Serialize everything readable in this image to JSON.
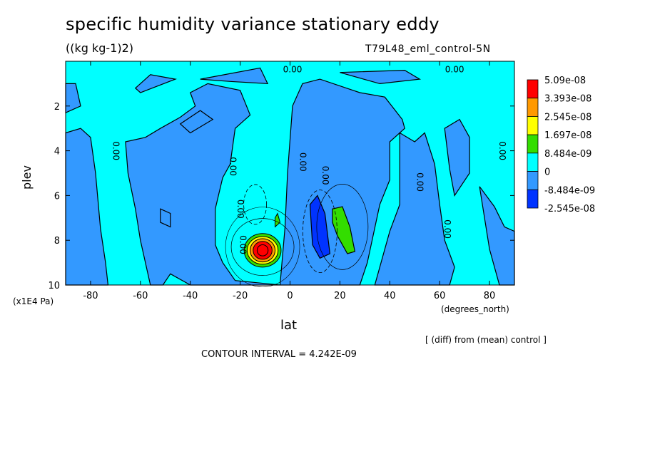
{
  "header": {
    "title": "specific humidity variance stationary eddy",
    "units": "((kg kg-1)2)",
    "run": "T79L48_eml_control-5N"
  },
  "footer": {
    "diff_note": "[ (diff) from (mean) control ]",
    "contour_interval": "CONTOUR INTERVAL = 4.242E-09"
  },
  "chart_data": {
    "type": "heatmap",
    "title": "specific humidity variance stationary eddy",
    "xlabel": "lat",
    "ylabel": "plev",
    "x_unit": "(degrees_north)",
    "y_unit": "(x1E4 Pa)",
    "xlim": [
      -90,
      90
    ],
    "ylim": [
      10,
      0
    ],
    "x_ticks": [
      -80,
      -60,
      -40,
      -20,
      0,
      20,
      40,
      60,
      80
    ],
    "y_ticks": [
      2,
      4,
      6,
      8,
      10
    ],
    "contour_interval": 4.242e-09,
    "colorbar": {
      "labels": [
        "5.09e-08",
        "3.393e-08",
        "2.545e-08",
        "1.697e-08",
        "8.484e-09",
        "0",
        "-8.484e-09",
        "-2.545e-08"
      ],
      "colors": [
        "#ff0000",
        "#ff9900",
        "#ffff00",
        "#33dd00",
        "#00ffff",
        "#3399ff",
        "#0033ff"
      ]
    },
    "contour_labels": [
      {
        "text": "0.00",
        "lat": 66,
        "plev": 0.5
      },
      {
        "text": "0.00",
        "lat": 1,
        "plev": 0.5
      },
      {
        "text": "0.00",
        "lat": -71,
        "plev": 4.0
      },
      {
        "text": "0.00",
        "lat": -24,
        "plev": 4.7
      },
      {
        "text": "0.00",
        "lat": -21,
        "plev": 6.6
      },
      {
        "text": "0.00",
        "lat": -20,
        "plev": 8.2
      },
      {
        "text": "0.00",
        "lat": 4,
        "plev": 4.5
      },
      {
        "text": "0.00",
        "lat": 13,
        "plev": 5.1
      },
      {
        "text": "0.00",
        "lat": 51,
        "plev": 5.4
      },
      {
        "text": "0.00",
        "lat": 62,
        "plev": 7.5
      },
      {
        "text": "0.00",
        "lat": 84,
        "plev": 4.0
      }
    ],
    "features": [
      {
        "name": "positive maximum",
        "lat": -11,
        "plev": 8.5,
        "value": 5.09e-08
      },
      {
        "name": "negative minimum",
        "lat": 13,
        "plev": 7.8,
        "value": -2.545e-08
      },
      {
        "name": "positive secondary",
        "lat": 20,
        "plev": 7.1,
        "value": 1.697e-08
      }
    ]
  }
}
